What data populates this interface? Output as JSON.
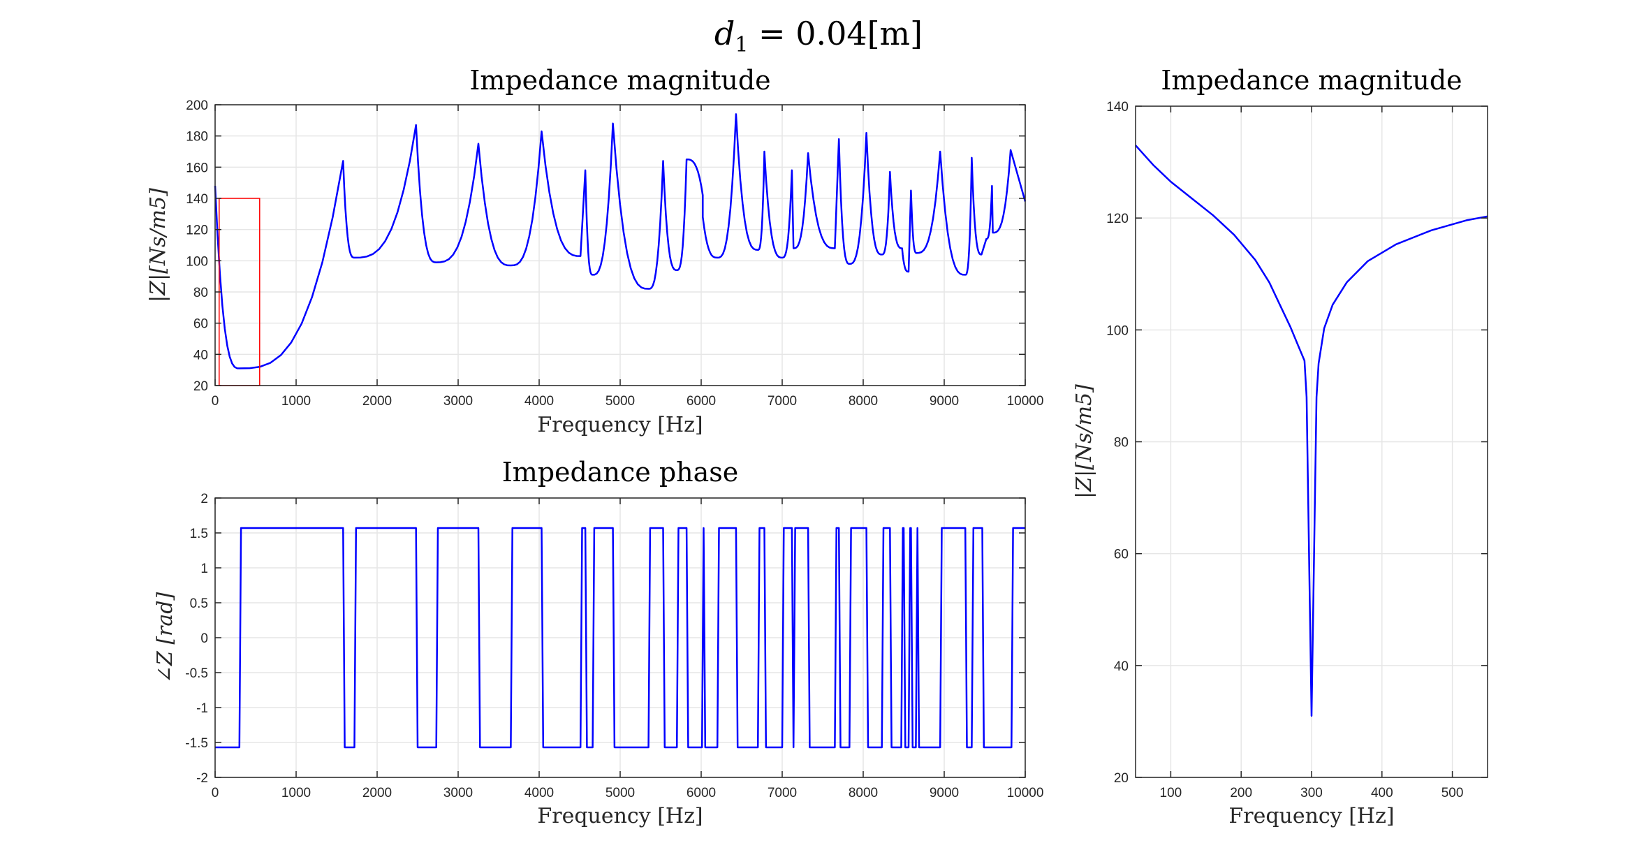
{
  "figure": {
    "suptitle_main": "d",
    "suptitle_sub": "1",
    "suptitle_rest": " = 0.04[m]"
  },
  "colors": {
    "line": "#0000ff",
    "zoom_box": "#ff0000",
    "grid": "#e6e6e6",
    "axis": "#262626"
  },
  "chart_data": [
    {
      "type": "line",
      "title": "Impedance magnitude",
      "xlabel": "Frequency [Hz]",
      "ylabel": "|Z|[Ns/m5]",
      "xlim": [
        0,
        10000
      ],
      "ylim": [
        20,
        200
      ],
      "xticks": [
        0,
        1000,
        2000,
        3000,
        4000,
        5000,
        6000,
        7000,
        8000,
        9000,
        10000
      ],
      "yticks": [
        20,
        40,
        60,
        80,
        100,
        120,
        140,
        160,
        180,
        200
      ],
      "grid": true,
      "zoom_box": {
        "x": [
          50,
          550
        ],
        "y": [
          20,
          140
        ]
      },
      "resonance_peaks": [
        [
          1580,
          164
        ],
        [
          2480,
          187
        ],
        [
          3250,
          175
        ],
        [
          4030,
          183
        ],
        [
          4570,
          158
        ],
        [
          4910,
          188
        ],
        [
          5530,
          164
        ],
        [
          5820,
          165
        ],
        [
          6020,
          142
        ],
        [
          6430,
          194
        ],
        [
          6780,
          170
        ],
        [
          7120,
          158
        ],
        [
          7320,
          169
        ],
        [
          7700,
          178
        ],
        [
          8040,
          182
        ],
        [
          8330,
          157
        ],
        [
          8590,
          145
        ],
        [
          8950,
          170
        ],
        [
          9340,
          166
        ],
        [
          9590,
          148
        ],
        [
          9820,
          171
        ]
      ],
      "anti_resonance_dips": [
        [
          300,
          31
        ],
        [
          1720,
          102
        ],
        [
          2730,
          99
        ],
        [
          3650,
          97
        ],
        [
          4510,
          103
        ],
        [
          4660,
          91
        ],
        [
          5350,
          82
        ],
        [
          5700,
          94
        ],
        [
          6020,
          128
        ],
        [
          6200,
          102
        ],
        [
          6700,
          107
        ],
        [
          7000,
          102
        ],
        [
          7140,
          108
        ],
        [
          7650,
          108
        ],
        [
          7830,
          98
        ],
        [
          8230,
          104
        ],
        [
          8480,
          108
        ],
        [
          8560,
          93
        ],
        [
          8660,
          105
        ],
        [
          9260,
          91
        ],
        [
          9460,
          104
        ],
        [
          9520,
          114
        ],
        [
          9600,
          118
        ]
      ],
      "series": [
        {
          "values": []
        }
      ]
    },
    {
      "type": "line",
      "title": "Impedance phase",
      "xlabel": "Frequency [Hz]",
      "ylabel": "∠Z [rad]",
      "xlim": [
        0,
        10000
      ],
      "ylim": [
        -2,
        2
      ],
      "xticks": [
        0,
        1000,
        2000,
        3000,
        4000,
        5000,
        6000,
        7000,
        8000,
        9000,
        10000
      ],
      "yticks": [
        -2,
        -1.5,
        -1,
        -0.5,
        0,
        0.5,
        1,
        1.5,
        2
      ],
      "grid": true,
      "levels": [
        1.57,
        -1.57
      ],
      "switch_frequencies": [
        300,
        1580,
        1720,
        2480,
        2730,
        3250,
        3650,
        4030,
        4510,
        4570,
        4660,
        4910,
        5350,
        5530,
        5700,
        5820,
        6010,
        6030,
        6200,
        6430,
        6700,
        6780,
        7000,
        7120,
        7140,
        7320,
        7650,
        7700,
        7830,
        8040,
        8230,
        8330,
        8470,
        8500,
        8560,
        8590,
        8650,
        8670,
        8950,
        9260,
        9340,
        9470,
        9830
      ],
      "series": [
        {
          "values": []
        }
      ]
    },
    {
      "type": "line",
      "title": "Impedance magnitude",
      "xlabel": "Frequency [Hz]",
      "ylabel": "|Z|[Ns/m5]",
      "xlim": [
        50,
        550
      ],
      "ylim": [
        20,
        140
      ],
      "xticks": [
        100,
        200,
        300,
        400,
        500
      ],
      "yticks": [
        20,
        40,
        60,
        80,
        100,
        120,
        140
      ],
      "grid": true,
      "series": [
        {
          "x": [
            50,
            75,
            100,
            130,
            160,
            190,
            220,
            240,
            255,
            270,
            280,
            290,
            293,
            300,
            307,
            310,
            318,
            330,
            350,
            380,
            420,
            470,
            520,
            550
          ],
          "values": [
            133,
            129.5,
            126.5,
            123.5,
            120.5,
            117,
            112.5,
            108.5,
            104.5,
            100.5,
            97.5,
            94.5,
            88,
            31,
            88,
            94,
            100.3,
            104.5,
            108.5,
            112.3,
            115.3,
            117.8,
            119.6,
            120.3
          ]
        }
      ]
    }
  ]
}
